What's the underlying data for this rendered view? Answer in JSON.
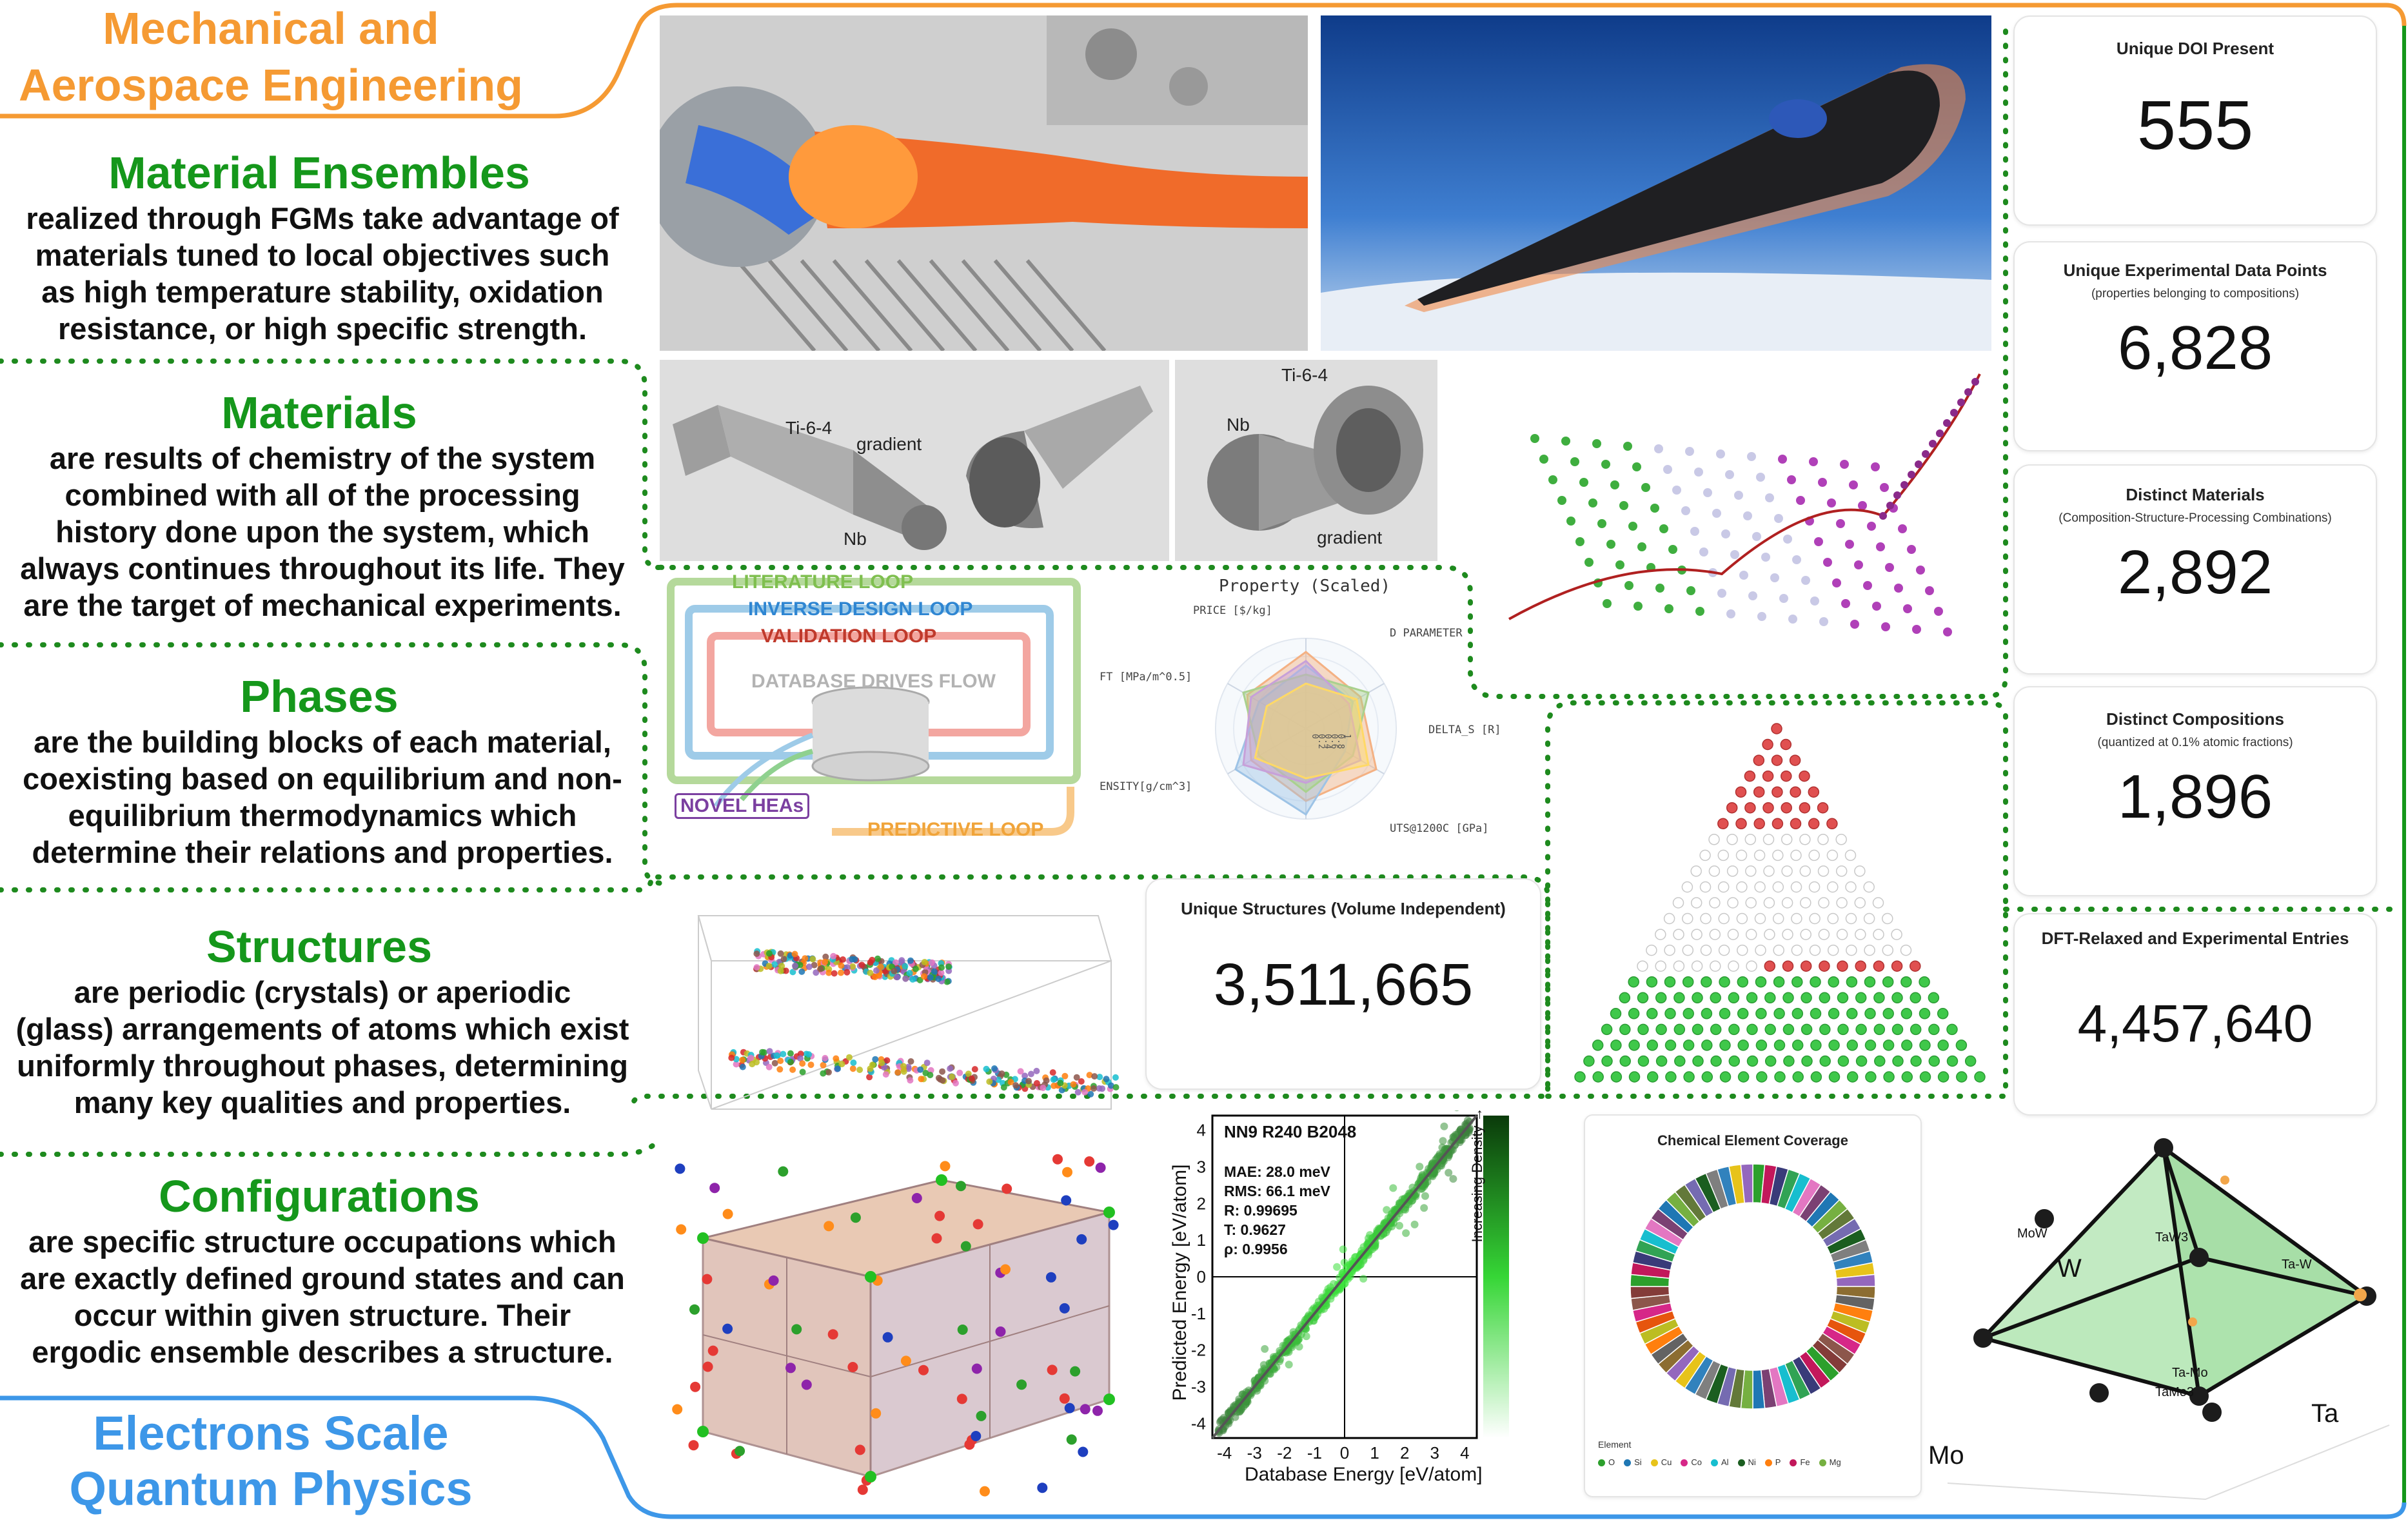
{
  "scales": {
    "top": {
      "line1": "Mechanical and",
      "line2": "Aerospace Engineering"
    },
    "bottom": {
      "line1": "Electrons Scale",
      "line2": "Quantum Physics"
    }
  },
  "sections": [
    {
      "title": "Material Ensembles",
      "lines": [
        "realized through FGMs take advantage of",
        "materials tuned to local objectives such",
        "as high temperature stability, oxidation",
        "resistance, or high specific strength."
      ]
    },
    {
      "title": "Materials",
      "lines": [
        "are results of chemistry of the system",
        "combined with all of the processing",
        "history done upon the system, which",
        "always continues throughout its life. They",
        "are the target of mechanical experiments."
      ]
    },
    {
      "title": "Phases",
      "lines": [
        "are the building blocks of each material,",
        "coexisting based on equilibrium and non-",
        "equilibrium thermodynamics which",
        "determine their relations and properties."
      ]
    },
    {
      "title": "Structures",
      "lines": [
        "are periodic (crystals) or aperiodic",
        "(glass) arrangements of atoms which exist",
        "uniformly throughout phases, determining",
        "many key qualities and properties."
      ]
    },
    {
      "title": "Configurations",
      "lines": [
        "are specific structure occupations which",
        "are exactly defined ground states and can",
        "occur within given structure. Their",
        "ergodic ensemble describes a structure."
      ]
    }
  ],
  "stats": [
    {
      "title": "Unique DOI Present",
      "subtitle": "",
      "value": "555"
    },
    {
      "title": "Unique Experimental Data Points",
      "subtitle": "(properties belonging to compositions)",
      "value": "6,828"
    },
    {
      "title": "Distinct Materials",
      "subtitle": "(Composition-Structure-Processing Combinations)",
      "value": "2,892"
    },
    {
      "title": "Distinct Compositions",
      "subtitle": "(quantized at 0.1% atomic fractions)",
      "value": "1,896"
    },
    {
      "title": "DFT-Relaxed and Experimental Entries",
      "subtitle": "",
      "value": "4,457,640"
    }
  ],
  "structures_card": {
    "title": "Unique Structures (Volume Independent)",
    "value": "3,511,665"
  },
  "fgm_labels": {
    "ti": "Ti-6-4",
    "gradient": "gradient",
    "nb": "Nb"
  },
  "loops": {
    "literature": "LITERATURE LOOP",
    "inverse": "INVERSE DESIGN LOOP",
    "validation": "VALIDATION LOOP",
    "database": "DATABASE DRIVES FLOW",
    "novel": "NOVEL HEAs",
    "predictive": "PREDICTIVE LOOP"
  },
  "radar": {
    "title": "Property (Scaled)",
    "axes": [
      "PRICE [$/kg]",
      "D PARAMETER",
      "DELTA_S [R]",
      "UTS@1200C [GPa]",
      "ENSITY[g/cm^3]",
      "FT [MPa/m^0.5]"
    ],
    "ticks": [
      "0",
      "0.2",
      "0.4",
      "0.6",
      "0.8",
      "1"
    ]
  },
  "parity": {
    "xlabel": "Database Energy [eV/atom]",
    "ylabel": "Predicted Energy [eV/atom]",
    "colorbar_label": "Increasing Density →",
    "ticks": [
      "-4",
      "-3",
      "-2",
      "-1",
      "0",
      "1",
      "2",
      "3",
      "4"
    ],
    "legend_title": "NN9 R240 B2048",
    "metrics": [
      "MAE: 28.0 meV",
      "RMS: 66.1 meV",
      "R: 0.99695",
      "T: 0.9627",
      "ρ: 0.9956"
    ]
  },
  "donut": {
    "title": "Chemical Element Coverage",
    "legend_label": "Element",
    "legend_items": [
      {
        "name": "O",
        "color": "#2ca02c"
      },
      {
        "name": "Si",
        "color": "#1f77b4"
      },
      {
        "name": "Cu",
        "color": "#e7c31a"
      },
      {
        "name": "Co",
        "color": "#d62788"
      },
      {
        "name": "Al",
        "color": "#17becf"
      },
      {
        "name": "Ni",
        "color": "#1b5e20"
      },
      {
        "name": "P",
        "color": "#ff7f0e"
      },
      {
        "name": "Fe",
        "color": "#c2185b"
      },
      {
        "name": "Mg",
        "color": "#76b041"
      }
    ]
  },
  "tetra": {
    "labels": [
      "Mo",
      "W",
      "Ta",
      "MoW",
      "TaW3",
      "Ta-W",
      "Ta-Mo",
      "TaMo3"
    ]
  },
  "colors": {
    "orange": "#f59a33",
    "green": "#15971b",
    "blue": "#3d97e8",
    "dotted": "#1e8a1e"
  }
}
